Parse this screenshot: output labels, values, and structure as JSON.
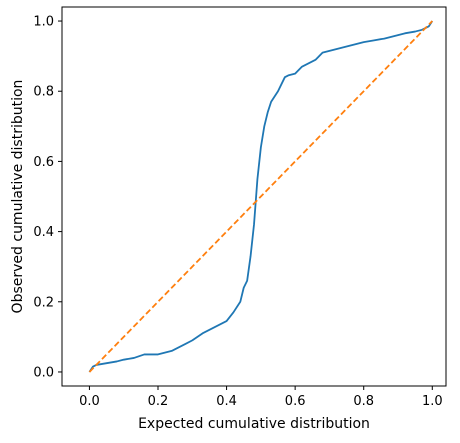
{
  "chart_data": {
    "type": "line",
    "xlabel": "Expected cumulative distribution",
    "ylabel": "Observed cumulative distribution",
    "xlim": [
      -0.08,
      1.04
    ],
    "ylim": [
      -0.04,
      1.04
    ],
    "xticks": [
      0.0,
      0.2,
      0.4,
      0.6,
      0.8,
      1.0
    ],
    "yticks": [
      0.0,
      0.2,
      0.4,
      0.6,
      0.8,
      1.0
    ],
    "xtick_labels": [
      "0.0",
      "0.2",
      "0.4",
      "0.6",
      "0.8",
      "1.0"
    ],
    "ytick_labels": [
      "0.0",
      "0.2",
      "0.4",
      "0.6",
      "0.8",
      "1.0"
    ],
    "grid": false,
    "series": [
      {
        "color": "#1f77b4",
        "style": "solid",
        "x": [
          0.0,
          0.01,
          0.02,
          0.05,
          0.08,
          0.1,
          0.13,
          0.16,
          0.17,
          0.2,
          0.22,
          0.24,
          0.26,
          0.28,
          0.3,
          0.33,
          0.36,
          0.38,
          0.4,
          0.42,
          0.44,
          0.45,
          0.46,
          0.47,
          0.48,
          0.49,
          0.5,
          0.51,
          0.52,
          0.53,
          0.54,
          0.55,
          0.56,
          0.57,
          0.58,
          0.6,
          0.62,
          0.64,
          0.66,
          0.68,
          0.7,
          0.72,
          0.74,
          0.76,
          0.78,
          0.8,
          0.83,
          0.86,
          0.88,
          0.9,
          0.92,
          0.95,
          0.97,
          0.99,
          1.0
        ],
        "y": [
          0.0,
          0.015,
          0.02,
          0.025,
          0.03,
          0.035,
          0.04,
          0.05,
          0.05,
          0.05,
          0.055,
          0.06,
          0.07,
          0.08,
          0.09,
          0.11,
          0.125,
          0.135,
          0.145,
          0.17,
          0.2,
          0.24,
          0.26,
          0.33,
          0.42,
          0.55,
          0.64,
          0.7,
          0.74,
          0.77,
          0.785,
          0.8,
          0.82,
          0.84,
          0.845,
          0.85,
          0.87,
          0.88,
          0.89,
          0.91,
          0.915,
          0.92,
          0.925,
          0.93,
          0.935,
          0.94,
          0.945,
          0.95,
          0.955,
          0.96,
          0.965,
          0.97,
          0.975,
          0.985,
          1.0
        ]
      },
      {
        "color": "#ff7f0e",
        "style": "dashed",
        "x": [
          0.0,
          1.0
        ],
        "y": [
          0.0,
          1.0
        ]
      }
    ]
  }
}
